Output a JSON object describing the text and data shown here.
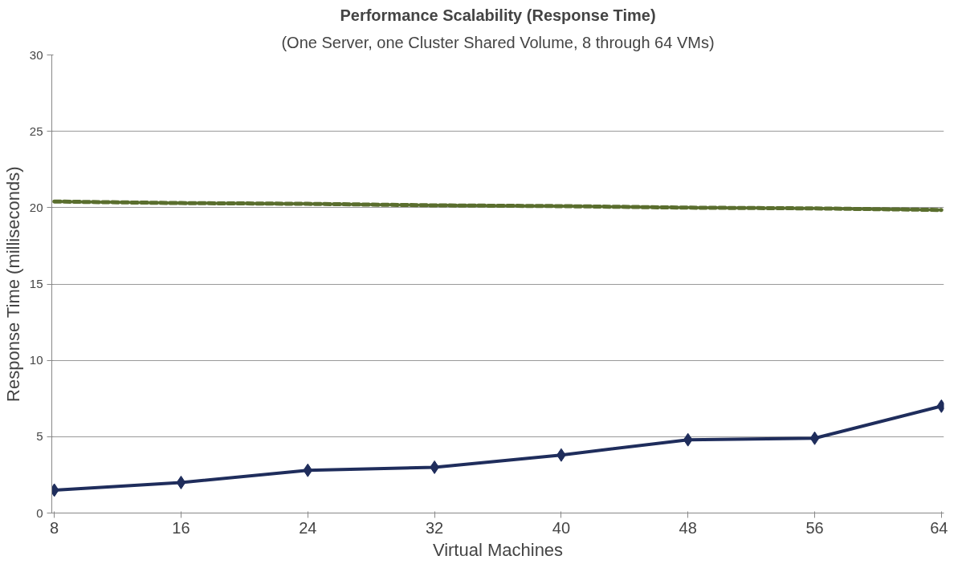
{
  "chart_data": {
    "type": "line",
    "title": "Performance Scalability (Response Time)",
    "subtitle": "(One Server, one Cluster Shared Volume, 8 through 64 VMs)",
    "xlabel": "Virtual Machines",
    "ylabel": "Response Time (milliseconds)",
    "categories": [
      "8",
      "16",
      "24",
      "32",
      "40",
      "48",
      "56",
      "64"
    ],
    "series": [
      {
        "color": "#1f2d5c",
        "values": [
          1.5,
          2.0,
          2.8,
          3.0,
          3.8,
          4.8,
          4.9,
          7.0
        ],
        "marker": "diamond",
        "line_style": "solid"
      },
      {
        "color": "#5a6e2e",
        "values": [
          20.4,
          20.3,
          20.25,
          20.15,
          20.1,
          20.0,
          19.95,
          19.85
        ],
        "marker": "none",
        "line_style": "dashed"
      }
    ],
    "ylim": [
      0,
      30
    ],
    "yticks": [
      0,
      5,
      10,
      15,
      20,
      25,
      30
    ],
    "grid": "y"
  }
}
